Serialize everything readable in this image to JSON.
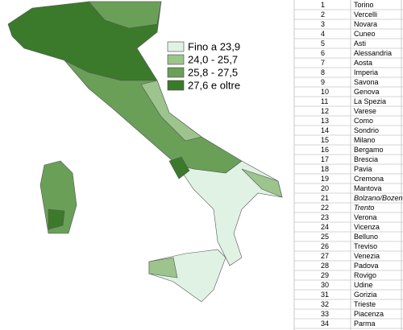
{
  "legend": [
    {
      "label": "Fino a 23,9",
      "color": "#dff2e4"
    },
    {
      "label": "24,0 - 25,7",
      "color": "#9cc48c"
    },
    {
      "label": "25,8 - 27,5",
      "color": "#6a9f58"
    },
    {
      "label": "27,6 e oltre",
      "color": "#3b7a2b"
    }
  ],
  "table": {
    "rows": [
      {
        "number": 1,
        "name": "Torino"
      },
      {
        "number": 2,
        "name": "Vercelli"
      },
      {
        "number": 3,
        "name": "Novara"
      },
      {
        "number": 4,
        "name": "Cuneo"
      },
      {
        "number": 5,
        "name": "Asti"
      },
      {
        "number": 6,
        "name": "Alessandria"
      },
      {
        "number": 7,
        "name": "Aosta"
      },
      {
        "number": 8,
        "name": "Imperia"
      },
      {
        "number": 9,
        "name": "Savona"
      },
      {
        "number": 10,
        "name": "Genova"
      },
      {
        "number": 11,
        "name": "La Spezia"
      },
      {
        "number": 12,
        "name": "Varese"
      },
      {
        "number": 13,
        "name": "Como"
      },
      {
        "number": 14,
        "name": "Sondrio"
      },
      {
        "number": 15,
        "name": "Milano"
      },
      {
        "number": 16,
        "name": "Bergamo"
      },
      {
        "number": 17,
        "name": "Brescia"
      },
      {
        "number": 18,
        "name": "Pavia"
      },
      {
        "number": 19,
        "name": "Cremona"
      },
      {
        "number": 20,
        "name": "Mantova"
      },
      {
        "number": 21,
        "name": "Bolzano/Bozen",
        "italic": true
      },
      {
        "number": 22,
        "name": "Trento",
        "italic": true
      },
      {
        "number": 23,
        "name": "Verona"
      },
      {
        "number": 24,
        "name": "Vicenza"
      },
      {
        "number": 25,
        "name": "Belluno"
      },
      {
        "number": 26,
        "name": "Treviso"
      },
      {
        "number": 27,
        "name": "Venezia"
      },
      {
        "number": 28,
        "name": "Padova"
      },
      {
        "number": 29,
        "name": "Rovigo"
      },
      {
        "number": 30,
        "name": "Udine"
      },
      {
        "number": 31,
        "name": "Gorizia"
      },
      {
        "number": 32,
        "name": "Trieste"
      },
      {
        "number": 33,
        "name": "Piacenza"
      },
      {
        "number": 34,
        "name": "Parma"
      }
    ]
  }
}
